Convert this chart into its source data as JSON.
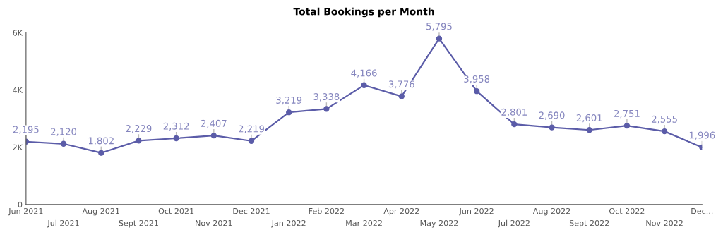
{
  "chart_data": {
    "type": "line",
    "title": "Total Bookings per Month",
    "categories": [
      "Jun 2021",
      "Jul 2021",
      "Aug 2021",
      "Sept 2021",
      "Oct 2021",
      "Nov 2021",
      "Dec 2021",
      "Jan 2022",
      "Feb 2022",
      "Mar 2022",
      "Apr 2022",
      "May 2022",
      "Jun 2022",
      "Jul 2022",
      "Aug 2022",
      "Sept 2022",
      "Oct 2022",
      "Nov 2022",
      "Dec..."
    ],
    "series": [
      {
        "color": "#5b5ca8",
        "values": [
          2195,
          2120,
          1802,
          2229,
          2312,
          2407,
          2219,
          3219,
          3338,
          4166,
          3776,
          5795,
          3958,
          2801,
          2690,
          2601,
          2751,
          2555,
          1996
        ],
        "value_labels": [
          "2,195",
          "2,120",
          "1,802",
          "2,229",
          "2,312",
          "2,407",
          "2,219",
          "3,219",
          "3,338",
          "4,166",
          "3,776",
          "5,795",
          "3,958",
          "2,801",
          "2,690",
          "2,601",
          "2,751",
          "2,555",
          "1,996"
        ]
      }
    ],
    "ylim": [
      0,
      6000
    ],
    "yticks": [
      0,
      {
        "value": 2000,
        "label": "2K"
      },
      {
        "value": 4000,
        "label": "4K"
      },
      {
        "value": 6000,
        "label": "6K"
      }
    ],
    "grid": false,
    "marker": "circle",
    "line_style": "solid"
  }
}
